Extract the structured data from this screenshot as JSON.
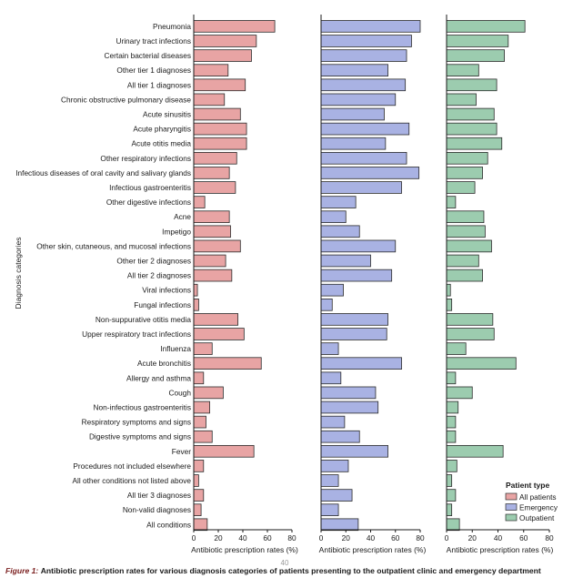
{
  "chart_data": {
    "type": "bar",
    "orientation": "horizontal",
    "ylabel": "Diagnosis categories",
    "xlabel": "Antibiotic prescription rates (%)",
    "categories": [
      "Pneumonia",
      "Urinary tract infections",
      "Certain bacterial diseases",
      "Other tier 1 diagnoses",
      "All tier 1 diagnoses",
      "Chronic obstructive pulmonary disease",
      "Acute sinusitis",
      "Acute pharyngitis",
      "Acute otitis media",
      "Other respiratory infections",
      "Infectious diseases of oral cavity and salivary glands",
      "Infectious gastroenteritis",
      "Other digestive infections",
      "Acne",
      "Impetigo",
      "Other skin, cutaneous, and mucosal infections",
      "Other tier 2 diagnoses",
      "All tier 2 diagnoses",
      "Viral infections",
      "Fungal infections",
      "Non-suppurative otitis media",
      "Upper respiratory tract infections",
      "Influenza",
      "Acute bronchitis",
      "Allergy and asthma",
      "Cough",
      "Non-infectious gastroenteritis",
      "Respiratory symptoms and signs",
      "Digestive symptoms and signs",
      "Fever",
      "Procedures not included elsewhere",
      "All other conditions not listed above",
      "All tier 3 diagnoses",
      "Non-valid diagnoses",
      "All conditions"
    ],
    "series": [
      {
        "name": "All patients",
        "color": "#e8a4a4",
        "values": [
          66,
          51,
          47,
          28,
          42,
          25,
          38,
          43,
          43,
          35,
          29,
          34,
          9,
          29,
          30,
          38,
          26,
          31,
          3,
          4,
          36,
          41,
          15,
          55,
          8,
          24,
          13,
          10,
          15,
          49,
          8,
          4,
          8,
          6,
          11
        ]
      },
      {
        "name": "Emergency",
        "color": "#a9b2e3",
        "values": [
          80,
          73,
          69,
          54,
          68,
          60,
          51,
          71,
          52,
          69,
          79,
          65,
          28,
          20,
          31,
          60,
          40,
          57,
          18,
          9,
          54,
          53,
          14,
          65,
          16,
          44,
          46,
          19,
          31,
          54,
          22,
          14,
          25,
          14,
          30
        ]
      },
      {
        "name": "Outpatient",
        "color": "#9cccaf",
        "values": [
          61,
          48,
          45,
          25,
          39,
          23,
          37,
          39,
          43,
          32,
          28,
          22,
          7,
          29,
          30,
          35,
          25,
          28,
          3,
          4,
          36,
          37,
          15,
          54,
          7,
          20,
          9,
          7,
          7,
          44,
          8,
          4,
          7,
          4,
          10
        ]
      }
    ],
    "xlim": [
      0,
      80
    ],
    "xticks": [
      "0",
      "20",
      "40",
      "60",
      "80"
    ],
    "grid": false,
    "legend": {
      "title": "Patient type",
      "placement": "bottom-right",
      "entries": [
        "All patients",
        "Emergency",
        "Outpatient"
      ]
    }
  },
  "page_number": "40",
  "caption": {
    "figure_number": "Figure 1:",
    "text": "Antibiotic prescription rates for various diagnosis categories of patients presenting to the outpatient clinic and emergency department"
  }
}
